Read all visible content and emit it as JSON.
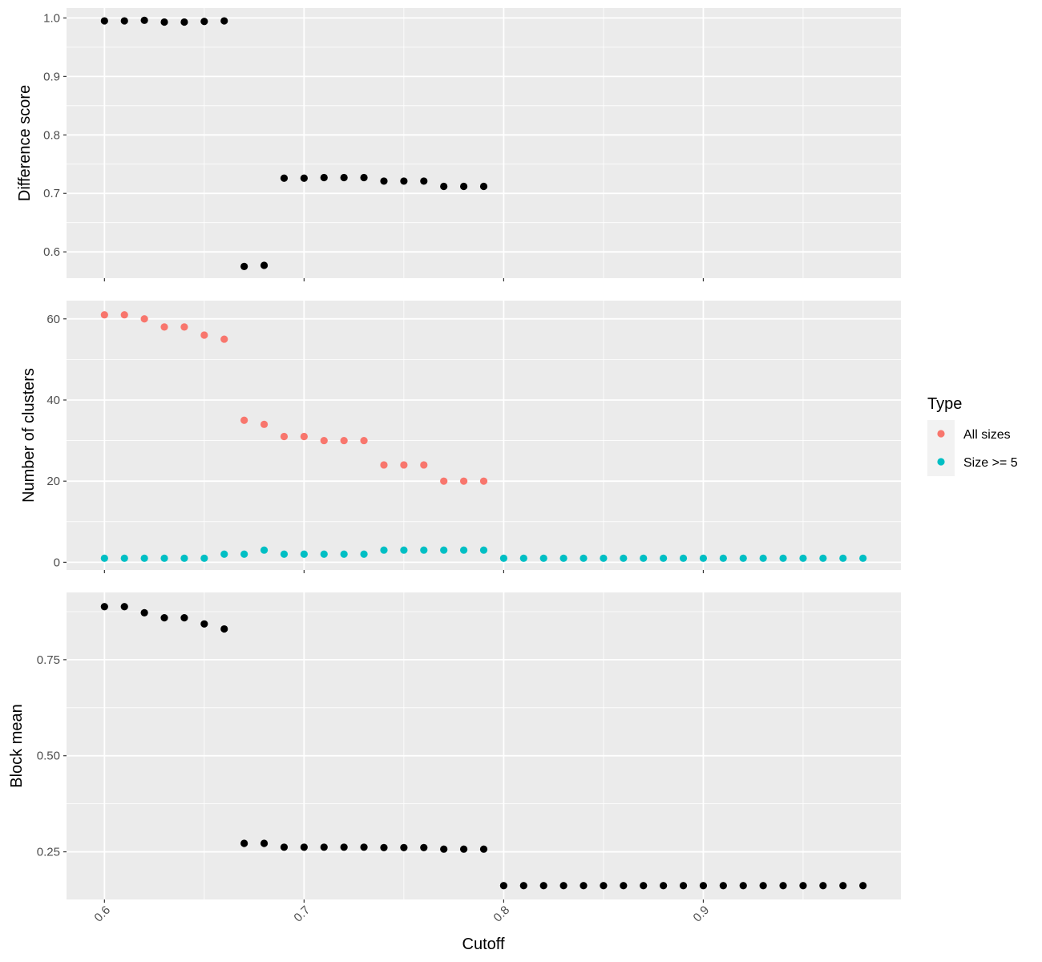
{
  "chart_data": {
    "type": "scatter",
    "xlabel": "Cutoff",
    "xlim": [
      0.581,
      0.999
    ],
    "x_ticks": [
      0.6,
      0.7,
      0.8,
      0.9
    ],
    "x_tick_labels": [
      "0.6",
      "0.7",
      "0.8",
      "0.9"
    ],
    "grid": true,
    "legend": {
      "title": "Type",
      "position": "right",
      "entries": [
        {
          "label": "All sizes",
          "color": "#F8766D"
        },
        {
          "label": "Size >= 5",
          "color": "#00BFC4"
        }
      ]
    },
    "panels": [
      {
        "ylabel": "Difference score",
        "ylim": [
          0.555,
          1.017
        ],
        "y_ticks": [
          0.6,
          0.7,
          0.8,
          0.9,
          1.0
        ],
        "y_tick_labels": [
          "0.6",
          "0.7",
          "0.8",
          "0.9",
          "1.0"
        ],
        "series": [
          {
            "color": "#000000",
            "x": [
              0.6,
              0.61,
              0.62,
              0.63,
              0.64,
              0.65,
              0.66,
              0.67,
              0.68,
              0.69,
              0.7,
              0.71,
              0.72,
              0.73,
              0.74,
              0.75,
              0.76,
              0.77,
              0.78,
              0.79
            ],
            "y": [
              0.995,
              0.995,
              0.996,
              0.993,
              0.993,
              0.994,
              0.995,
              0.575,
              0.577,
              0.726,
              0.726,
              0.727,
              0.727,
              0.727,
              0.721,
              0.721,
              0.721,
              0.712,
              0.712,
              0.712
            ]
          }
        ]
      },
      {
        "ylabel": "Number of clusters",
        "ylim": [
          -1.9,
          64.5
        ],
        "y_ticks": [
          0,
          20,
          40,
          60
        ],
        "y_tick_labels": [
          "0",
          "20",
          "40",
          "60"
        ],
        "series": [
          {
            "name": "All sizes",
            "color": "#F8766D",
            "x": [
              0.6,
              0.61,
              0.62,
              0.63,
              0.64,
              0.65,
              0.66,
              0.67,
              0.68,
              0.69,
              0.7,
              0.71,
              0.72,
              0.73,
              0.74,
              0.75,
              0.76,
              0.77,
              0.78,
              0.79
            ],
            "y": [
              61,
              61,
              60,
              58,
              58,
              56,
              55,
              35,
              34,
              31,
              31,
              30,
              30,
              30,
              24,
              24,
              24,
              20,
              20,
              20
            ]
          },
          {
            "name": "Size >= 5",
            "color": "#00BFC4",
            "x": [
              0.6,
              0.61,
              0.62,
              0.63,
              0.64,
              0.65,
              0.66,
              0.67,
              0.68,
              0.69,
              0.7,
              0.71,
              0.72,
              0.73,
              0.74,
              0.75,
              0.76,
              0.77,
              0.78,
              0.79,
              0.8,
              0.81,
              0.82,
              0.83,
              0.84,
              0.85,
              0.86,
              0.87,
              0.88,
              0.89,
              0.9,
              0.91,
              0.92,
              0.93,
              0.94,
              0.95,
              0.96,
              0.97,
              0.98
            ],
            "y": [
              1,
              1,
              1,
              1,
              1,
              1,
              2,
              2,
              3,
              2,
              2,
              2,
              2,
              2,
              3,
              3,
              3,
              3,
              3,
              3,
              1,
              1,
              1,
              1,
              1,
              1,
              1,
              1,
              1,
              1,
              1,
              1,
              1,
              1,
              1,
              1,
              1,
              1,
              1
            ]
          }
        ]
      },
      {
        "ylabel": "Block mean",
        "ylim": [
          0.126,
          0.925
        ],
        "y_ticks": [
          0.25,
          0.5,
          0.75
        ],
        "y_tick_labels": [
          "0.25",
          "0.50",
          "0.75"
        ],
        "series": [
          {
            "color": "#000000",
            "x": [
              0.6,
              0.61,
              0.62,
              0.63,
              0.64,
              0.65,
              0.66,
              0.67,
              0.68,
              0.69,
              0.7,
              0.71,
              0.72,
              0.73,
              0.74,
              0.75,
              0.76,
              0.77,
              0.78,
              0.79,
              0.8,
              0.81,
              0.82,
              0.83,
              0.84,
              0.85,
              0.86,
              0.87,
              0.88,
              0.89,
              0.9,
              0.91,
              0.92,
              0.93,
              0.94,
              0.95,
              0.96,
              0.97,
              0.98
            ],
            "y": [
              0.888,
              0.888,
              0.872,
              0.859,
              0.859,
              0.843,
              0.83,
              0.272,
              0.272,
              0.262,
              0.262,
              0.262,
              0.262,
              0.262,
              0.261,
              0.261,
              0.261,
              0.257,
              0.257,
              0.257,
              0.162,
              0.162,
              0.162,
              0.162,
              0.162,
              0.162,
              0.162,
              0.162,
              0.162,
              0.162,
              0.162,
              0.162,
              0.162,
              0.162,
              0.162,
              0.162,
              0.162,
              0.162,
              0.162
            ]
          }
        ]
      }
    ]
  }
}
